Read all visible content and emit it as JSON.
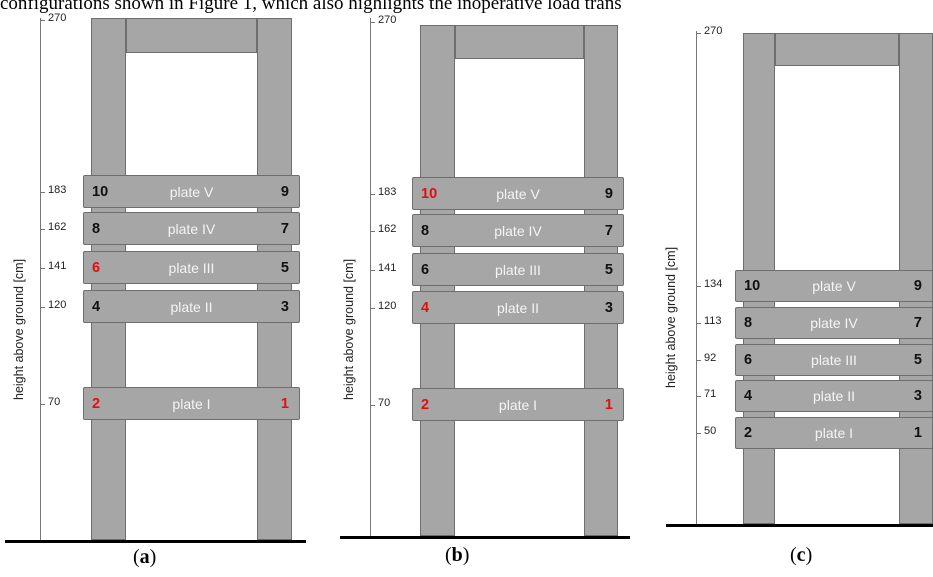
{
  "caption_text": "configurations shown in Figure 1, which also highlights the inoperative load trans",
  "axis_title": "height above ground [cm]",
  "colors": {
    "structure": "#a6a6a6",
    "label_text": "#f4f4f4",
    "highlight": "#e01010"
  },
  "panels": [
    {
      "id": "a",
      "label_open": "(",
      "label_letter": "a",
      "label_close": ")",
      "top_tick": "270",
      "plates": [
        {
          "name": "plate V",
          "height": "183",
          "left": "10",
          "right": "9",
          "left_red": false,
          "right_red": false
        },
        {
          "name": "plate IV",
          "height": "162",
          "left": "8",
          "right": "7",
          "left_red": false,
          "right_red": false
        },
        {
          "name": "plate III",
          "height": "141",
          "left": "6",
          "right": "5",
          "left_red": true,
          "right_red": false
        },
        {
          "name": "plate II",
          "height": "120",
          "left": "4",
          "right": "3",
          "left_red": false,
          "right_red": false
        },
        {
          "name": "plate I",
          "height": "70",
          "left": "2",
          "right": "1",
          "left_red": true,
          "right_red": true
        }
      ]
    },
    {
      "id": "b",
      "label_open": "(",
      "label_letter": "b",
      "label_close": ")",
      "top_tick": "270",
      "plates": [
        {
          "name": "plate V",
          "height": "183",
          "left": "10",
          "right": "9",
          "left_red": true,
          "right_red": false
        },
        {
          "name": "plate IV",
          "height": "162",
          "left": "8",
          "right": "7",
          "left_red": false,
          "right_red": false
        },
        {
          "name": "plate III",
          "height": "141",
          "left": "6",
          "right": "5",
          "left_red": false,
          "right_red": false
        },
        {
          "name": "plate II",
          "height": "120",
          "left": "4",
          "right": "3",
          "left_red": true,
          "right_red": false
        },
        {
          "name": "plate I",
          "height": "70",
          "left": "2",
          "right": "1",
          "left_red": true,
          "right_red": true
        }
      ]
    },
    {
      "id": "c",
      "label_open": "(",
      "label_letter": "c",
      "label_close": ")",
      "top_tick": "270",
      "plates": [
        {
          "name": "plate V",
          "height": "134",
          "left": "10",
          "right": "9",
          "left_red": false,
          "right_red": false
        },
        {
          "name": "plate IV",
          "height": "113",
          "left": "8",
          "right": "7",
          "left_red": false,
          "right_red": false
        },
        {
          "name": "plate III",
          "height": "92",
          "left": "6",
          "right": "5",
          "left_red": false,
          "right_red": false
        },
        {
          "name": "plate II",
          "height": "71",
          "left": "4",
          "right": "3",
          "left_red": false,
          "right_red": false
        },
        {
          "name": "plate I",
          "height": "50",
          "left": "2",
          "right": "1",
          "left_red": false,
          "right_red": false
        }
      ]
    }
  ]
}
